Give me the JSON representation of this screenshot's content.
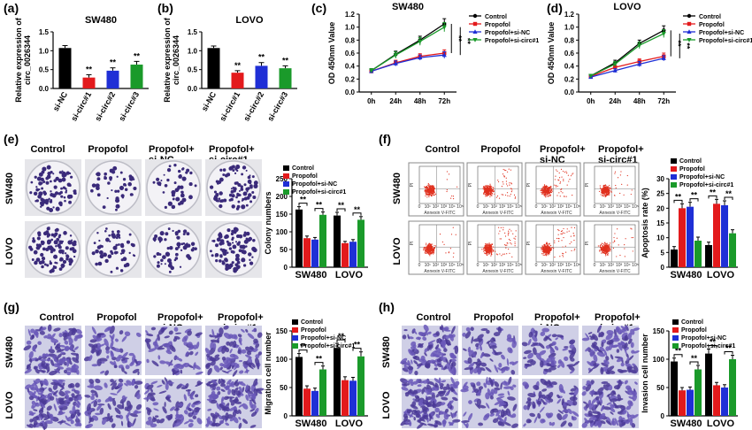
{
  "colors": {
    "control": "#000000",
    "propofol": "#e31a1c",
    "si_nc": "#1f2fd6",
    "si_circ": "#1a9a2a"
  },
  "legend_labels": [
    "Control",
    "Propofol",
    "Propofol+si-NC",
    "Propofol+si-circ#1"
  ],
  "group_headers": {
    "control": "Control",
    "propofol": "Propofol",
    "si_nc_1": "Propofol+",
    "si_nc_2": "si-NC",
    "si_circ_1": "Propofol+",
    "si_circ_2": "si-circ#1"
  },
  "row_labels": {
    "sw480": "SW480",
    "lovo": "LOVO"
  },
  "flow_axis": {
    "xlabel": "Annexin V-FITC",
    "ylabel": "PI",
    "ticks": [
      "0",
      "10¹",
      "10²",
      "10³",
      "10⁴",
      "10⁵"
    ]
  },
  "sig": "**",
  "chart_data": [
    {
      "panel": "(a)",
      "type": "bar",
      "title": "SW480",
      "ylabel": "Relative expression of circ_0026344",
      "categories": [
        "si-NC",
        "si-circ#1",
        "si-circ#2",
        "si-circ#3"
      ],
      "values": [
        1.0,
        0.27,
        0.44,
        0.59
      ],
      "errors": [
        0.06,
        0.07,
        0.07,
        0.08
      ],
      "colors": [
        "#000000",
        "#e31a1c",
        "#1f2fd6",
        "#1a9a2a"
      ],
      "ylim": [
        0,
        1.4
      ],
      "sig": [
        "",
        "**",
        "**",
        "**"
      ]
    },
    {
      "panel": "(b)",
      "type": "bar",
      "title": "LOVO",
      "ylabel": "Relative expression of circ_0026344",
      "categories": [
        "si-NC",
        "si-circ#1",
        "si-circ#2",
        "si-circ#3"
      ],
      "values": [
        1.0,
        0.39,
        0.56,
        0.5
      ],
      "errors": [
        0.05,
        0.05,
        0.08,
        0.06
      ],
      "colors": [
        "#000000",
        "#e31a1c",
        "#1f2fd6",
        "#1a9a2a"
      ],
      "ylim": [
        0,
        1.4
      ],
      "sig": [
        "",
        "**",
        "**",
        "**"
      ]
    },
    {
      "panel": "(c)",
      "type": "line",
      "title": "SW480",
      "ylabel": "OD 450nm Value",
      "x": [
        "0h",
        "24h",
        "48h",
        "72h"
      ],
      "ylim": [
        0.0,
        1.2
      ],
      "yticks": [
        "0.0",
        "0.2",
        "0.4",
        "0.6",
        "0.8",
        "1.0",
        "1.2"
      ],
      "series": [
        {
          "name": "Control",
          "values": [
            0.33,
            0.58,
            0.8,
            1.05
          ],
          "errors": [
            0.03,
            0.05,
            0.06,
            0.08
          ]
        },
        {
          "name": "Propofol",
          "values": [
            0.32,
            0.45,
            0.55,
            0.6
          ],
          "errors": [
            0.03,
            0.04,
            0.04,
            0.05
          ]
        },
        {
          "name": "Propofol+si-NC",
          "values": [
            0.32,
            0.44,
            0.53,
            0.57
          ],
          "errors": [
            0.03,
            0.04,
            0.04,
            0.05
          ]
        },
        {
          "name": "Propofol+si-circ#1",
          "values": [
            0.33,
            0.57,
            0.78,
            1.0
          ],
          "errors": [
            0.03,
            0.05,
            0.06,
            0.07
          ]
        }
      ],
      "sig": [
        "**",
        "**"
      ]
    },
    {
      "panel": "(d)",
      "type": "line",
      "title": "LOVO",
      "ylabel": "OD 450nm Value",
      "x": [
        "0h",
        "24h",
        "48h",
        "72h"
      ],
      "ylim": [
        0.0,
        1.2
      ],
      "yticks": [
        "0.0",
        "0.2",
        "0.4",
        "0.6",
        "0.8",
        "1.0",
        "1.2"
      ],
      "series": [
        {
          "name": "Control",
          "values": [
            0.25,
            0.45,
            0.75,
            0.95
          ],
          "errors": [
            0.02,
            0.04,
            0.05,
            0.07
          ]
        },
        {
          "name": "Propofol",
          "values": [
            0.24,
            0.38,
            0.47,
            0.55
          ],
          "errors": [
            0.02,
            0.03,
            0.04,
            0.05
          ]
        },
        {
          "name": "Propofol+si-NC",
          "values": [
            0.23,
            0.33,
            0.43,
            0.52
          ],
          "errors": [
            0.02,
            0.03,
            0.04,
            0.04
          ]
        },
        {
          "name": "Propofol+si-circ#1",
          "values": [
            0.25,
            0.43,
            0.72,
            0.9
          ],
          "errors": [
            0.02,
            0.04,
            0.05,
            0.06
          ]
        }
      ],
      "sig": [
        "**",
        "**"
      ]
    },
    {
      "panel": "(e)",
      "type": "bar",
      "ylabel": "Colony numbers",
      "ylim": [
        0,
        250
      ],
      "yticks": [
        "0",
        "50",
        "100",
        "150",
        "200",
        "250"
      ],
      "categories": [
        "SW480",
        "LOVO"
      ],
      "series": [
        {
          "name": "Control",
          "values": [
            163,
            146
          ],
          "errors": [
            8,
            9
          ]
        },
        {
          "name": "Propofol",
          "values": [
            82,
            68
          ],
          "errors": [
            6,
            5
          ]
        },
        {
          "name": "Propofol+si-NC",
          "values": [
            78,
            72
          ],
          "errors": [
            6,
            6
          ]
        },
        {
          "name": "Propofol+si-circ#1",
          "values": [
            148,
            134
          ],
          "errors": [
            8,
            9
          ]
        }
      ],
      "sig": [
        "**",
        "**",
        "**",
        "**"
      ]
    },
    {
      "panel": "(f)",
      "type": "bar",
      "ylabel": "Apoptosis rate (%)",
      "ylim": [
        0,
        30
      ],
      "yticks": [
        "0",
        "5",
        "10",
        "15",
        "20",
        "25",
        "30"
      ],
      "categories": [
        "SW480",
        "LOVO"
      ],
      "series": [
        {
          "name": "Control",
          "values": [
            6,
            7.5
          ],
          "errors": [
            1,
            1
          ]
        },
        {
          "name": "Propofol",
          "values": [
            20,
            21.5
          ],
          "errors": [
            1.5,
            1.5
          ]
        },
        {
          "name": "Propofol+si-NC",
          "values": [
            20.5,
            21
          ],
          "errors": [
            1.5,
            1.5
          ]
        },
        {
          "name": "Propofol+si-circ#1",
          "values": [
            9,
            11.5
          ],
          "errors": [
            1.2,
            1.2
          ]
        }
      ],
      "sig": [
        "**",
        "**",
        "**",
        "**"
      ]
    },
    {
      "panel": "(g)",
      "type": "bar",
      "ylabel": "Migration cell number",
      "ylim": [
        0,
        150
      ],
      "yticks": [
        "0",
        "50",
        "100",
        "150"
      ],
      "categories": [
        "SW480",
        "LOVO"
      ],
      "series": [
        {
          "name": "Control",
          "values": [
            104,
            120
          ],
          "errors": [
            6,
            8
          ]
        },
        {
          "name": "Propofol",
          "values": [
            48,
            63
          ],
          "errors": [
            5,
            6
          ]
        },
        {
          "name": "Propofol+si-NC",
          "values": [
            44,
            62
          ],
          "errors": [
            5,
            6
          ]
        },
        {
          "name": "Propofol+si-circ#1",
          "values": [
            82,
            105
          ],
          "errors": [
            6,
            8
          ]
        }
      ],
      "sig": [
        "**",
        "**",
        "**",
        "**"
      ]
    },
    {
      "panel": "(h)",
      "type": "bar",
      "ylabel": "Invasion cell number",
      "ylim": [
        0,
        150
      ],
      "yticks": [
        "0",
        "50",
        "100",
        "150"
      ],
      "categories": [
        "SW480",
        "LOVO"
      ],
      "series": [
        {
          "name": "Control",
          "values": [
            96,
            110
          ],
          "errors": [
            6,
            8
          ]
        },
        {
          "name": "Propofol",
          "values": [
            45,
            54
          ],
          "errors": [
            5,
            5
          ]
        },
        {
          "name": "Propofol+si-NC",
          "values": [
            46,
            50
          ],
          "errors": [
            5,
            5
          ]
        },
        {
          "name": "Propofol+si-circ#1",
          "values": [
            82,
            100
          ],
          "errors": [
            7,
            7
          ]
        }
      ],
      "sig": [
        "**",
        "**",
        "**",
        "**"
      ]
    }
  ]
}
